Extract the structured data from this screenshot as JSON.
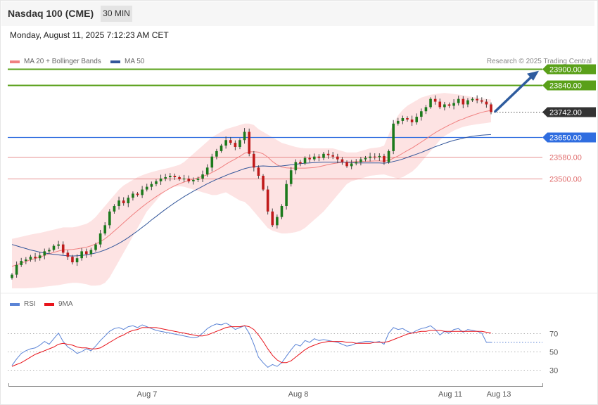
{
  "header": {
    "title": "Nasdaq 100 (CME)",
    "timeframe": "30 MIN",
    "datetime": "Monday, August 11, 2025 7:12:23 AM CET",
    "credit": "Research © 2025 Trading Central"
  },
  "colors": {
    "ma20": "#f08080",
    "ma50": "#33569a",
    "bollinger_fill": "#fde3e3",
    "target": "#5aa019",
    "pivot": "#2f6de0",
    "support": "#e06c6c",
    "current": "#333333",
    "arrow": "#2f5c9e",
    "rsi": "#5b84d6",
    "rsi_ma": "#e8141b",
    "candle_up": "#1c7a1c",
    "candle_down": "#c01a1a"
  },
  "chart_data": [
    {
      "type": "candlestick",
      "legend": [
        {
          "label": "MA 20 + Bollinger Bands",
          "color": "#f08080"
        },
        {
          "label": "MA 50",
          "color": "#33569a"
        }
      ],
      "ylim": [
        23085,
        23930
      ],
      "x_ticks": [
        "Aug 7",
        "Aug 8",
        "Aug 11",
        "Aug 13"
      ],
      "levels": [
        {
          "value": 23900,
          "label": "23900.00",
          "kind": "target"
        },
        {
          "value": 23840,
          "label": "23840.00",
          "kind": "target"
        },
        {
          "value": 23742,
          "label": "23742.00",
          "kind": "current"
        },
        {
          "value": 23650,
          "label": "23650.00",
          "kind": "pivot"
        },
        {
          "value": 23580,
          "label": "23580.00",
          "kind": "support"
        },
        {
          "value": 23500,
          "label": "23500.00",
          "kind": "support"
        }
      ],
      "close": [
        23150,
        23185,
        23200,
        23205,
        23215,
        23210,
        23220,
        23235,
        23240,
        23255,
        23260,
        23230,
        23215,
        23195,
        23210,
        23235,
        23225,
        23240,
        23260,
        23300,
        23330,
        23380,
        23400,
        23420,
        23410,
        23430,
        23445,
        23440,
        23460,
        23470,
        23480,
        23490,
        23500,
        23505,
        23510,
        23505,
        23498,
        23500,
        23490,
        23495,
        23500,
        23515,
        23540,
        23580,
        23600,
        23620,
        23640,
        23630,
        23615,
        23640,
        23670,
        23590,
        23540,
        23510,
        23460,
        23380,
        23330,
        23360,
        23400,
        23480,
        23530,
        23560,
        23555,
        23575,
        23570,
        23580,
        23575,
        23590,
        23585,
        23580,
        23570,
        23560,
        23545,
        23555,
        23560,
        23570,
        23575,
        23580,
        23578,
        23582,
        23560,
        23600,
        23700,
        23710,
        23720,
        23715,
        23705,
        23725,
        23745,
        23760,
        23790,
        23780,
        23760,
        23770,
        23765,
        23775,
        23790,
        23770,
        23785,
        23790,
        23785,
        23780,
        23770,
        23742
      ],
      "ma20": [
        23180,
        23186,
        23192,
        23198,
        23204,
        23209,
        23214,
        23220,
        23226,
        23231,
        23236,
        23240,
        23241,
        23242,
        23244,
        23247,
        23250,
        23255,
        23262,
        23270,
        23281,
        23294,
        23309,
        23324,
        23339,
        23354,
        23369,
        23383,
        23397,
        23410,
        23422,
        23434,
        23445,
        23455,
        23465,
        23474,
        23481,
        23487,
        23493,
        23498,
        23503,
        23508,
        23514,
        23522,
        23531,
        23541,
        23552,
        23562,
        23571,
        23581,
        23592,
        23597,
        23598,
        23596,
        23590,
        23578,
        23562,
        23550,
        23542,
        23539,
        23538,
        23538,
        23538,
        23538,
        23539,
        23540,
        23543,
        23547,
        23551,
        23554,
        23557,
        23559,
        23560,
        23561,
        23562,
        23562,
        23563,
        23563,
        23564,
        23564,
        23563,
        23566,
        23574,
        23582,
        23592,
        23602,
        23611,
        23622,
        23633,
        23644,
        23656,
        23667,
        23677,
        23686,
        23695,
        23703,
        23711,
        23717,
        23724,
        23730,
        23736,
        23741,
        23745,
        23748
      ],
      "bb_upper": [
        23280,
        23284,
        23288,
        23292,
        23296,
        23299,
        23302,
        23306,
        23310,
        23314,
        23318,
        23322,
        23322,
        23322,
        23325,
        23330,
        23335,
        23345,
        23360,
        23380,
        23400,
        23420,
        23440,
        23460,
        23475,
        23485,
        23495,
        23505,
        23512,
        23518,
        23523,
        23528,
        23532,
        23536,
        23540,
        23545,
        23550,
        23560,
        23575,
        23590,
        23605,
        23620,
        23635,
        23650,
        23660,
        23670,
        23680,
        23685,
        23690,
        23695,
        23700,
        23700,
        23695,
        23680,
        23670,
        23660,
        23650,
        23640,
        23630,
        23625,
        23620,
        23615,
        23612,
        23610,
        23610,
        23610,
        23610,
        23610,
        23610,
        23610,
        23605,
        23600,
        23595,
        23595,
        23595,
        23600,
        23605,
        23610,
        23612,
        23614,
        23620,
        23660,
        23700,
        23730,
        23750,
        23765,
        23775,
        23785,
        23795,
        23800,
        23805,
        23808,
        23810,
        23812,
        23810,
        23808,
        23806,
        23803,
        23800,
        23797,
        23795,
        23792,
        23790,
        23788
      ],
      "bb_lower": [
        23100,
        23100,
        23100,
        23100,
        23101,
        23102,
        23104,
        23106,
        23108,
        23110,
        23112,
        23115,
        23118,
        23120,
        23120,
        23118,
        23115,
        23110,
        23110,
        23112,
        23120,
        23140,
        23170,
        23200,
        23230,
        23260,
        23290,
        23320,
        23350,
        23380,
        23400,
        23420,
        23440,
        23455,
        23465,
        23470,
        23472,
        23470,
        23465,
        23460,
        23455,
        23450,
        23445,
        23440,
        23440,
        23445,
        23450,
        23440,
        23430,
        23420,
        23415,
        23400,
        23380,
        23360,
        23340,
        23320,
        23310,
        23305,
        23300,
        23300,
        23302,
        23305,
        23310,
        23320,
        23335,
        23350,
        23365,
        23380,
        23400,
        23420,
        23440,
        23460,
        23480,
        23490,
        23495,
        23500,
        23505,
        23510,
        23512,
        23514,
        23515,
        23510,
        23505,
        23500,
        23505,
        23515,
        23525,
        23540,
        23560,
        23580,
        23600,
        23620,
        23640,
        23655,
        23665,
        23675,
        23682,
        23688,
        23692,
        23695,
        23698,
        23700,
        23702,
        23705
      ],
      "ma50": [
        23260,
        23255,
        23250,
        23245,
        23240,
        23236,
        23232,
        23229,
        23226,
        23224,
        23222,
        23220,
        23219,
        23218,
        23219,
        23220,
        23222,
        23225,
        23229,
        23234,
        23240,
        23247,
        23255,
        23264,
        23274,
        23285,
        23297,
        23309,
        23322,
        23335,
        23349,
        23362,
        23375,
        23388,
        23400,
        23412,
        23423,
        23434,
        23444,
        23454,
        23463,
        23472,
        23481,
        23489,
        23497,
        23504,
        23511,
        23518,
        23524,
        23530,
        23536,
        23540,
        23543,
        23545,
        23546,
        23545,
        23544,
        23545,
        23546,
        23548,
        23550,
        23552,
        23554,
        23556,
        23557,
        23558,
        23559,
        23560,
        23560,
        23560,
        23560,
        23560,
        23559,
        23558,
        23557,
        23557,
        23557,
        23557,
        23557,
        23557,
        23556,
        23558,
        23562,
        23566,
        23571,
        23577,
        23583,
        23589,
        23595,
        23602,
        23609,
        23616,
        23622,
        23628,
        23634,
        23639,
        23643,
        23647,
        23651,
        23654,
        23656,
        23658,
        23659,
        23660
      ]
    },
    {
      "type": "line",
      "legend": [
        {
          "label": "RSI",
          "color": "#5b84d6"
        },
        {
          "label": "9MA",
          "color": "#e8141b"
        }
      ],
      "ylim": [
        15,
        95
      ],
      "y_ticks": [
        "70",
        "50",
        "30"
      ],
      "rsi": [
        35,
        42,
        48,
        51,
        53,
        54,
        57,
        61,
        58,
        64,
        70,
        61,
        55,
        52,
        48,
        50,
        53,
        51,
        56,
        62,
        67,
        72,
        75,
        76,
        74,
        77,
        78,
        76,
        79,
        77,
        75,
        73,
        72,
        71,
        70,
        69,
        68,
        67,
        66,
        65,
        66,
        70,
        75,
        78,
        80,
        79,
        81,
        78,
        74,
        76,
        78,
        70,
        58,
        44,
        38,
        33,
        36,
        34,
        38,
        45,
        52,
        58,
        56,
        62,
        60,
        64,
        62,
        63,
        62,
        61,
        60,
        58,
        56,
        57,
        59,
        60,
        61,
        61,
        60,
        61,
        58,
        70,
        76,
        74,
        75,
        72,
        70,
        73,
        75,
        76,
        78,
        74,
        68,
        72,
        70,
        74,
        75,
        71,
        74,
        73,
        72,
        70,
        60,
        60
      ],
      "rsi_ma": [
        34,
        36,
        38,
        41,
        44,
        47,
        49,
        51,
        53,
        55,
        58,
        59,
        58,
        57,
        55,
        54,
        54,
        53,
        53,
        54,
        57,
        60,
        63,
        66,
        68,
        71,
        73,
        74,
        76,
        76,
        76,
        76,
        75,
        74,
        73,
        72,
        71,
        70,
        69,
        68,
        67,
        67,
        68,
        70,
        72,
        74,
        76,
        77,
        77,
        77,
        78,
        77,
        74,
        68,
        61,
        53,
        46,
        41,
        38,
        38,
        40,
        44,
        48,
        52,
        55,
        57,
        59,
        60,
        61,
        61,
        61,
        61,
        60,
        60,
        59,
        59,
        59,
        59,
        60,
        60,
        60,
        61,
        63,
        65,
        67,
        69,
        70,
        71,
        72,
        72,
        73,
        73,
        73,
        72,
        72,
        72,
        72,
        72,
        72,
        72,
        72,
        72,
        71,
        70
      ]
    }
  ]
}
